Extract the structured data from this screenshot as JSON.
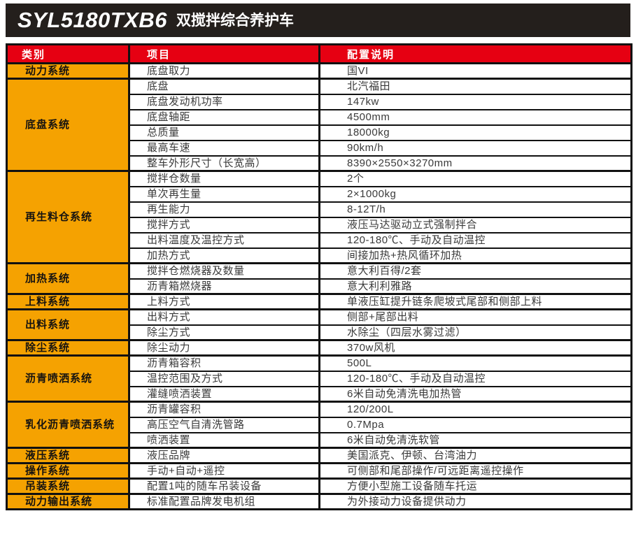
{
  "title": {
    "model": "SYL5180TXB6",
    "subtitle": "双搅拌综合养护车"
  },
  "colors": {
    "bar_black": "#241f1c",
    "header_red": "#e60012",
    "category_orange": "#f5a201",
    "border_black": "#111111"
  },
  "table": {
    "headers": [
      "类别",
      "项目",
      "配置说明"
    ],
    "groups": [
      {
        "category": "动力系统",
        "rows": [
          {
            "item": "底盘取力",
            "config": "国VI"
          }
        ]
      },
      {
        "category": "底盘系统",
        "rows": [
          {
            "item": "底盘",
            "config": "北汽福田"
          },
          {
            "item": "底盘发动机功率",
            "config": "147kw"
          },
          {
            "item": "底盘轴距",
            "config": "4500mm"
          },
          {
            "item": "总质量",
            "config": "18000kg"
          },
          {
            "item": "最高车速",
            "config": "90km/h"
          },
          {
            "item": "整车外形尺寸（长宽高）",
            "config": "8390×2550×3270mm"
          }
        ]
      },
      {
        "category": "再生料仓系统",
        "rows": [
          {
            "item": "搅拌仓数量",
            "config": "2个"
          },
          {
            "item": "单次再生量",
            "config": "2×1000kg"
          },
          {
            "item": "再生能力",
            "config": "8-12T/h"
          },
          {
            "item": "搅拌方式",
            "config": "液压马达驱动立式强制拌合"
          },
          {
            "item": "出料温度及温控方式",
            "config": "120-180℃、手动及自动温控"
          },
          {
            "item": "加热方式",
            "config": "间接加热+热风循环加热"
          }
        ]
      },
      {
        "category": "加热系统",
        "rows": [
          {
            "item": "搅拌仓燃烧器及数量",
            "config": "意大利百得/2套"
          },
          {
            "item": "沥青箱燃烧器",
            "config": "意大利利雅路"
          }
        ]
      },
      {
        "category": "上料系统",
        "rows": [
          {
            "item": "上料方式",
            "config": "单液压缸提升链条爬坡式尾部和侧部上料"
          }
        ]
      },
      {
        "category": "出料系统",
        "rows": [
          {
            "item": "出料方式",
            "config": "侧部+尾部出料"
          },
          {
            "item": "除尘方式",
            "config": "水除尘（四层水雾过滤）"
          }
        ]
      },
      {
        "category": "除尘系统",
        "rows": [
          {
            "item": "除尘动力",
            "config": "370w风机"
          }
        ]
      },
      {
        "category": "沥青喷洒系统",
        "rows": [
          {
            "item": "沥青箱容积",
            "config": "500L"
          },
          {
            "item": "温控范围及方式",
            "config": "120-180℃、手动及自动温控"
          },
          {
            "item": "灌缝喷洒装置",
            "config": "6米自动免清洗电加热管"
          }
        ]
      },
      {
        "category": "乳化沥青喷洒系统",
        "rows": [
          {
            "item": "沥青罐容积",
            "config": "120/200L"
          },
          {
            "item": "高压空气自清洗管路",
            "config": "0.7Mpa"
          },
          {
            "item": "喷洒装置",
            "config": "6米自动免清洗软管"
          }
        ]
      },
      {
        "category": "液压系统",
        "rows": [
          {
            "item": "液压品牌",
            "config": "美国派克、伊顿、台湾油力"
          }
        ]
      },
      {
        "category": "操作系统",
        "rows": [
          {
            "item": "手动+自动+遥控",
            "config": "可侧部和尾部操作/可远距离遥控操作"
          }
        ]
      },
      {
        "category": "吊装系统",
        "rows": [
          {
            "item": "配置1吨的随车吊装设备",
            "config": "方便小型施工设备随车托运"
          }
        ]
      },
      {
        "category": "动力输出系统",
        "rows": [
          {
            "item": "标准配置品牌发电机组",
            "config": "为外接动力设备提供动力"
          }
        ]
      }
    ]
  }
}
